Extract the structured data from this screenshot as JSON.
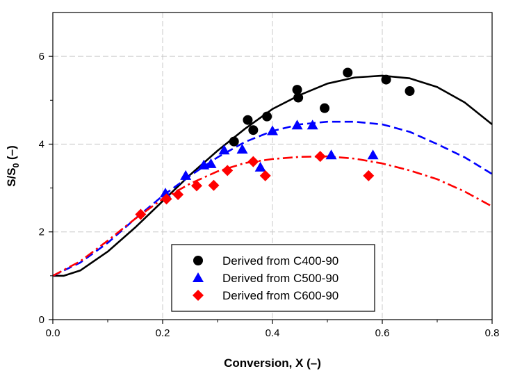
{
  "chart_data": {
    "type": "scatter",
    "title": "",
    "xlabel": "Conversion, X (–)",
    "ylabel_main": "S/S",
    "ylabel_sub": "0",
    "ylabel_tail": " (–)",
    "xlim": [
      0,
      0.8
    ],
    "ylim": [
      0,
      7
    ],
    "x_ticks": [
      0.0,
      0.2,
      0.4,
      0.6,
      0.8
    ],
    "x_tick_labels": [
      "0.0",
      "0.2",
      "0.4",
      "0.6",
      "0.8"
    ],
    "y_ticks": [
      0,
      2,
      4,
      6
    ],
    "y_tick_labels": [
      "0",
      "2",
      "4",
      "6"
    ],
    "grid": true,
    "legend_position": "bottom-center",
    "series": [
      {
        "name": "Derived from C400-90",
        "color": "#000000",
        "marker": "circle",
        "line_style": "solid",
        "points": [
          [
            0.33,
            4.06
          ],
          [
            0.355,
            4.55
          ],
          [
            0.365,
            4.32
          ],
          [
            0.39,
            4.63
          ],
          [
            0.445,
            5.24
          ],
          [
            0.447,
            5.06
          ],
          [
            0.495,
            4.82
          ],
          [
            0.537,
            5.63
          ],
          [
            0.607,
            5.47
          ],
          [
            0.65,
            5.21
          ]
        ],
        "fit": [
          [
            0,
            1.0
          ],
          [
            0.02,
            1.0
          ],
          [
            0.05,
            1.12
          ],
          [
            0.1,
            1.55
          ],
          [
            0.15,
            2.1
          ],
          [
            0.2,
            2.7
          ],
          [
            0.25,
            3.3
          ],
          [
            0.3,
            3.85
          ],
          [
            0.35,
            4.35
          ],
          [
            0.4,
            4.8
          ],
          [
            0.45,
            5.12
          ],
          [
            0.5,
            5.38
          ],
          [
            0.55,
            5.52
          ],
          [
            0.6,
            5.56
          ],
          [
            0.65,
            5.5
          ],
          [
            0.7,
            5.3
          ],
          [
            0.75,
            4.95
          ],
          [
            0.8,
            4.45
          ]
        ]
      },
      {
        "name": "Derived from C500-90",
        "color": "#0000ff",
        "marker": "triangle",
        "line_style": "dashed",
        "points": [
          [
            0.205,
            2.88
          ],
          [
            0.242,
            3.28
          ],
          [
            0.275,
            3.52
          ],
          [
            0.288,
            3.55
          ],
          [
            0.312,
            3.86
          ],
          [
            0.345,
            3.88
          ],
          [
            0.378,
            3.47
          ],
          [
            0.4,
            4.3
          ],
          [
            0.445,
            4.43
          ],
          [
            0.473,
            4.43
          ],
          [
            0.507,
            3.75
          ],
          [
            0.583,
            3.75
          ]
        ],
        "fit": [
          [
            0,
            1.0
          ],
          [
            0.05,
            1.3
          ],
          [
            0.1,
            1.75
          ],
          [
            0.15,
            2.3
          ],
          [
            0.2,
            2.82
          ],
          [
            0.25,
            3.28
          ],
          [
            0.3,
            3.7
          ],
          [
            0.35,
            4.05
          ],
          [
            0.4,
            4.3
          ],
          [
            0.45,
            4.45
          ],
          [
            0.5,
            4.51
          ],
          [
            0.55,
            4.51
          ],
          [
            0.6,
            4.45
          ],
          [
            0.65,
            4.28
          ],
          [
            0.7,
            4.0
          ],
          [
            0.75,
            3.7
          ],
          [
            0.8,
            3.32
          ]
        ]
      },
      {
        "name": "Derived from C600-90",
        "color": "#ff0000",
        "marker": "diamond",
        "line_style": "dashdot",
        "points": [
          [
            0.16,
            2.4
          ],
          [
            0.207,
            2.75
          ],
          [
            0.228,
            2.85
          ],
          [
            0.262,
            3.05
          ],
          [
            0.293,
            3.06
          ],
          [
            0.318,
            3.4
          ],
          [
            0.365,
            3.6
          ],
          [
            0.387,
            3.28
          ],
          [
            0.487,
            3.72
          ],
          [
            0.575,
            3.28
          ]
        ],
        "fit": [
          [
            0,
            1.0
          ],
          [
            0.05,
            1.33
          ],
          [
            0.1,
            1.8
          ],
          [
            0.15,
            2.3
          ],
          [
            0.2,
            2.75
          ],
          [
            0.25,
            3.1
          ],
          [
            0.3,
            3.38
          ],
          [
            0.35,
            3.57
          ],
          [
            0.4,
            3.66
          ],
          [
            0.45,
            3.71
          ],
          [
            0.5,
            3.72
          ],
          [
            0.55,
            3.67
          ],
          [
            0.6,
            3.56
          ],
          [
            0.65,
            3.4
          ],
          [
            0.7,
            3.2
          ],
          [
            0.75,
            2.92
          ],
          [
            0.8,
            2.58
          ]
        ]
      }
    ]
  }
}
